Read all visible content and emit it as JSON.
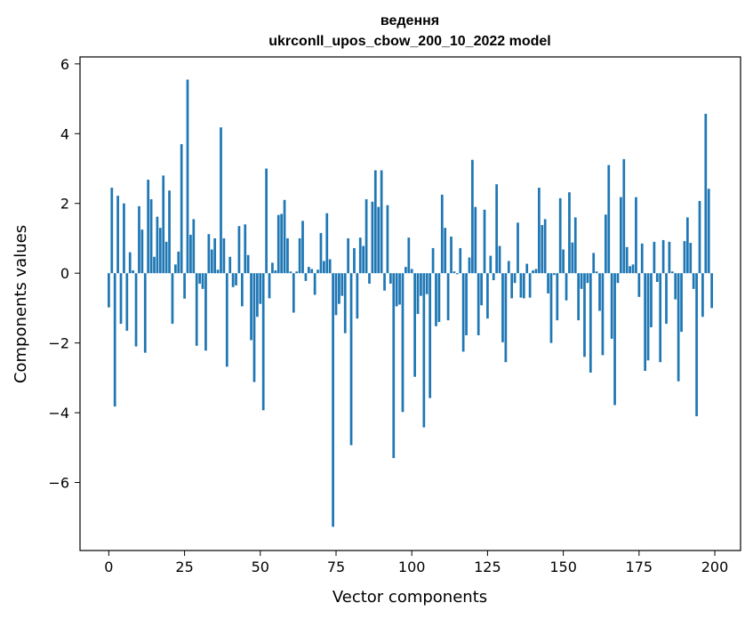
{
  "chart_data": {
    "type": "bar",
    "title": [
      "ведення",
      "ukrconll_upos_cbow_200_10_2022 model"
    ],
    "xlabel": "Vector components",
    "ylabel": "Components values",
    "xlim": [
      -9.5,
      208.5
    ],
    "ylim": [
      -7.95,
      6.2
    ],
    "xticks": [
      0,
      25,
      50,
      75,
      100,
      125,
      150,
      175,
      200
    ],
    "yticks": [
      -6,
      -4,
      -2,
      0,
      2,
      4,
      6
    ],
    "grid": false,
    "bar_color": "#1f77b4",
    "x": [
      0,
      1,
      2,
      3,
      4,
      5,
      6,
      7,
      8,
      9,
      10,
      11,
      12,
      13,
      14,
      15,
      16,
      17,
      18,
      19,
      20,
      21,
      22,
      23,
      24,
      25,
      26,
      27,
      28,
      29,
      30,
      31,
      32,
      33,
      34,
      35,
      36,
      37,
      38,
      39,
      40,
      41,
      42,
      43,
      44,
      45,
      46,
      47,
      48,
      49,
      50,
      51,
      52,
      53,
      54,
      55,
      56,
      57,
      58,
      59,
      60,
      61,
      62,
      63,
      64,
      65,
      66,
      67,
      68,
      69,
      70,
      71,
      72,
      73,
      74,
      75,
      76,
      77,
      78,
      79,
      80,
      81,
      82,
      83,
      84,
      85,
      86,
      87,
      88,
      89,
      90,
      91,
      92,
      93,
      94,
      95,
      96,
      97,
      98,
      99,
      100,
      101,
      102,
      103,
      104,
      105,
      106,
      107,
      108,
      109,
      110,
      111,
      112,
      113,
      114,
      115,
      116,
      117,
      118,
      119,
      120,
      121,
      122,
      123,
      124,
      125,
      126,
      127,
      128,
      129,
      130,
      131,
      132,
      133,
      134,
      135,
      136,
      137,
      138,
      139,
      140,
      141,
      142,
      143,
      144,
      145,
      146,
      147,
      148,
      149,
      150,
      151,
      152,
      153,
      154,
      155,
      156,
      157,
      158,
      159,
      160,
      161,
      162,
      163,
      164,
      165,
      166,
      167,
      168,
      169,
      170,
      171,
      172,
      173,
      174,
      175,
      176,
      177,
      178,
      179,
      180,
      181,
      182,
      183,
      184,
      185,
      186,
      187,
      188,
      189,
      190,
      191,
      192,
      193,
      194,
      195,
      196,
      197,
      198,
      199
    ],
    "values": [
      -0.98,
      2.45,
      -3.82,
      2.22,
      -1.45,
      2.0,
      -1.65,
      0.6,
      0.08,
      -2.1,
      1.92,
      1.25,
      -2.28,
      2.68,
      2.12,
      0.47,
      1.62,
      1.3,
      2.8,
      0.9,
      2.37,
      -1.45,
      0.25,
      0.62,
      3.7,
      -0.73,
      5.55,
      1.1,
      1.55,
      -2.08,
      -0.3,
      -0.45,
      -2.22,
      1.12,
      0.68,
      1.0,
      0.1,
      4.18,
      1.0,
      -2.68,
      0.47,
      -0.4,
      -0.35,
      1.35,
      -0.95,
      1.4,
      0.52,
      -1.92,
      -3.12,
      -1.25,
      -0.88,
      -3.93,
      3.0,
      -0.72,
      0.3,
      0.08,
      1.67,
      1.7,
      2.1,
      1.0,
      0.05,
      -1.13,
      0.05,
      1.0,
      1.5,
      -0.22,
      0.18,
      0.12,
      -0.62,
      0.1,
      1.15,
      0.35,
      1.72,
      0.4,
      -7.27,
      -1.2,
      -0.88,
      -0.65,
      -1.72,
      1.0,
      -4.93,
      0.72,
      -1.3,
      1.02,
      0.78,
      2.12,
      -0.3,
      2.05,
      2.95,
      1.9,
      2.95,
      -0.5,
      1.95,
      -0.3,
      -5.3,
      -0.95,
      -0.9,
      -3.98,
      0.18,
      1.02,
      0.12,
      -2.97,
      -1.17,
      -0.65,
      -4.42,
      -0.6,
      -3.58,
      0.72,
      -1.52,
      -1.4,
      2.25,
      1.3,
      -1.35,
      1.05,
      0.05,
      -0.03,
      0.72,
      -2.25,
      -1.78,
      0.45,
      3.25,
      1.9,
      -1.78,
      -0.92,
      1.82,
      -1.3,
      0.5,
      -0.2,
      2.55,
      0.78,
      -1.98,
      -2.55,
      0.35,
      -0.72,
      -0.28,
      1.45,
      -0.7,
      -0.72,
      0.27,
      -0.7,
      0.08,
      0.12,
      2.45,
      1.38,
      1.55,
      -0.58,
      -2.0,
      -0.05,
      -1.35,
      2.15,
      0.68,
      -0.78,
      2.32,
      0.88,
      1.6,
      -1.35,
      -0.45,
      -2.4,
      -0.28,
      -2.85,
      0.58,
      0.05,
      -1.08,
      -2.35,
      1.68,
      3.1,
      -1.88,
      -3.78,
      -0.28,
      2.18,
      3.27,
      0.75,
      0.2,
      0.25,
      2.18,
      -0.68,
      0.85,
      -2.8,
      -2.5,
      -1.55,
      0.9,
      -0.25,
      -2.55,
      0.95,
      -1.45,
      0.9,
      0.05,
      -0.75,
      -3.1,
      -1.68,
      0.92,
      1.6,
      0.87,
      -0.45,
      -4.1,
      2.07,
      -1.25,
      4.57,
      2.42,
      -1.0
    ]
  }
}
